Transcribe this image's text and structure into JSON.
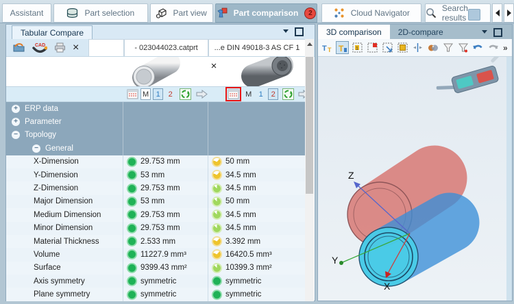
{
  "colors": {
    "accent": "#2f7cc4",
    "status_green": "#1fb257",
    "status_lime": "#a0d85e",
    "status_yellow": "#eec42d",
    "highlight_red": "#e81515",
    "group_row": "#8ca7bb"
  },
  "tabbar": {
    "tabs": [
      {
        "label": "Assistant",
        "icon": null,
        "active": false
      },
      {
        "label": "Part selection",
        "icon": "database-icon",
        "active": false
      },
      {
        "label": "Part view",
        "icon": "cube-icon",
        "active": false
      },
      {
        "label": "Part comparison",
        "icon": "part-comparison-icon",
        "active": true,
        "badge": "2"
      },
      {
        "label": "Cloud Navigator",
        "icon": "cloud-navigator-icon",
        "active": false
      },
      {
        "label": "Search results",
        "icon": "search-icon",
        "active": false
      }
    ]
  },
  "left_panel": {
    "title_tab": "Tabular Compare",
    "toolbar_icons": [
      "open-icon",
      "cad-export-icon",
      "print-icon",
      "close-icon"
    ],
    "close_label": "×",
    "columns": [
      {
        "header": "- 023044023.catprt",
        "selected_detail": "1"
      },
      {
        "header": "...e DIN 49018-3 AS CF 1",
        "selected_detail": "2"
      }
    ],
    "detail_buttons": {
      "m": "M",
      "one": "1",
      "two": "2"
    },
    "rows": [
      {
        "label": "ERP data",
        "type": "group",
        "level": 0,
        "exp": "plus"
      },
      {
        "label": "Parameter",
        "type": "group",
        "level": 0,
        "exp": "plus"
      },
      {
        "label": "Topology",
        "type": "group",
        "level": 0,
        "exp": "minus"
      },
      {
        "label": "General",
        "type": "group",
        "level": 1,
        "exp": "minus"
      },
      {
        "label": "X-Dimension",
        "type": "data",
        "c1": {
          "s": "green",
          "v": "29.753 mm"
        },
        "c2": {
          "s": "yellow",
          "v": "50 mm"
        }
      },
      {
        "label": "Y-Dimension",
        "type": "data",
        "c1": {
          "s": "green",
          "v": "53 mm"
        },
        "c2": {
          "s": "yellow",
          "v": "34.5 mm"
        }
      },
      {
        "label": "Z-Dimension",
        "type": "data",
        "c1": {
          "s": "green",
          "v": "29.753 mm"
        },
        "c2": {
          "s": "lime",
          "v": "34.5 mm"
        }
      },
      {
        "label": "Major Dimension",
        "type": "data",
        "c1": {
          "s": "green",
          "v": "53 mm"
        },
        "c2": {
          "s": "lime",
          "v": "50 mm"
        }
      },
      {
        "label": "Medium Dimension",
        "type": "data",
        "c1": {
          "s": "green",
          "v": "29.753 mm"
        },
        "c2": {
          "s": "lime",
          "v": "34.5 mm"
        }
      },
      {
        "label": "Minor Dimension",
        "type": "data",
        "c1": {
          "s": "green",
          "v": "29.753 mm"
        },
        "c2": {
          "s": "lime",
          "v": "34.5 mm"
        }
      },
      {
        "label": "Material Thickness",
        "type": "data",
        "c1": {
          "s": "green",
          "v": "2.533 mm"
        },
        "c2": {
          "s": "yellow",
          "v": "3.392 mm"
        }
      },
      {
        "label": "Volume",
        "type": "data",
        "c1": {
          "s": "green",
          "v": "11227.9 mm³"
        },
        "c2": {
          "s": "yellow",
          "v": "16420.5 mm³"
        }
      },
      {
        "label": "Surface",
        "type": "data",
        "c1": {
          "s": "green",
          "v": "9399.43 mm²"
        },
        "c2": {
          "s": "lime",
          "v": "10399.3 mm²"
        }
      },
      {
        "label": "Axis symmetry",
        "type": "data",
        "c1": {
          "s": "green",
          "v": "symmetric"
        },
        "c2": {
          "s": "green",
          "v": "symmetric"
        }
      },
      {
        "label": "Plane symmetry",
        "type": "data",
        "c1": {
          "s": "green",
          "v": "symmetric"
        },
        "c2": {
          "s": "green",
          "v": "symmetric"
        }
      }
    ]
  },
  "right_panel": {
    "tabs": [
      {
        "label": "3D comparison",
        "active": true
      },
      {
        "label": "2D-compare",
        "active": false
      }
    ],
    "toolbar_icons": [
      "compare-text-icon",
      "compare-text-active-icon",
      "select-all-icon",
      "select-region-icon",
      "select-move-icon",
      "select-fill-icon",
      "align-center-icon",
      "shaded-view-icon",
      "filter-up-icon",
      "filter-down-icon",
      "undo-icon",
      "redo-icon"
    ],
    "overflow": "»",
    "axes": {
      "x": "X",
      "y": "Y",
      "z": "Z"
    }
  }
}
